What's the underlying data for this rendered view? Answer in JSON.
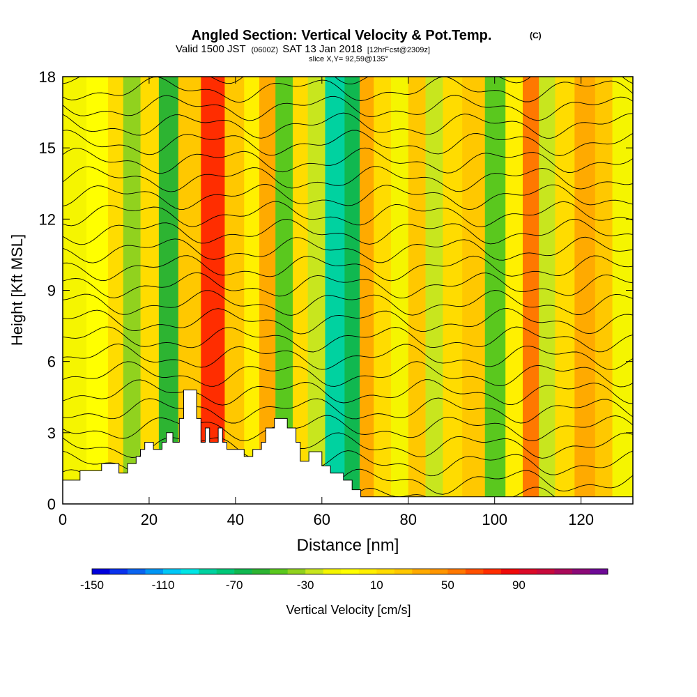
{
  "chart_data": {
    "type": "heatmap",
    "title": "Angled Section: Vertical Velocity & Pot.Temp.",
    "title_units": "(C)",
    "subtitle_main_a": "Valid 1500 JST",
    "subtitle_small_a": "(0600Z)",
    "subtitle_main_b": "SAT 13 Jan 2018",
    "subtitle_small_b": "[12hrFcst@2309z]",
    "subtitle_slice": "slice X,Y= 92,59@135°",
    "xlabel": "Distance [nm]",
    "ylabel": "Height [Kft MSL]",
    "xlim": [
      0,
      132
    ],
    "ylim": [
      0,
      18
    ],
    "x_ticks": [
      "0",
      "20",
      "40",
      "60",
      "80",
      "100",
      "120"
    ],
    "x_tick_values": [
      0,
      20,
      40,
      60,
      80,
      100,
      120
    ],
    "y_ticks": [
      "0",
      "3",
      "6",
      "9",
      "12",
      "15",
      "18"
    ],
    "y_tick_values": [
      0,
      3,
      6,
      9,
      12,
      15,
      18
    ],
    "colorbar_label": "Vertical Velocity [cm/s]",
    "colorbar_ticks": [
      "-150",
      "-110",
      "-70",
      "-30",
      "10",
      "50",
      "90"
    ],
    "colorbar_colors": [
      "#0000dd",
      "#0a32ee",
      "#0a64f0",
      "#0096f5",
      "#00c8f8",
      "#00e6e6",
      "#00d2a0",
      "#00c878",
      "#10b850",
      "#2db432",
      "#5ac81e",
      "#91d21e",
      "#c8e61e",
      "#f5f500",
      "#ffff00",
      "#fff000",
      "#ffdc00",
      "#ffc800",
      "#ffaa00",
      "#ff9600",
      "#ff7800",
      "#ff5000",
      "#ff2d00",
      "#f00a0a",
      "#dc0a28",
      "#c80a3c",
      "#aa0a5a",
      "#8c0a78",
      "#6e0a96"
    ],
    "velocity_bands": [
      {
        "x": 2,
        "v": -12
      },
      {
        "x": 9,
        "v": -5
      },
      {
        "x": 12,
        "v": 14
      },
      {
        "x": 16,
        "v": -40
      },
      {
        "x": 20,
        "v": 12
      },
      {
        "x": 24.5,
        "v": -60
      },
      {
        "x": 29,
        "v": 20
      },
      {
        "x": 35,
        "v": 75
      },
      {
        "x": 40,
        "v": 25
      },
      {
        "x": 44,
        "v": 0
      },
      {
        "x": 47,
        "v": 30
      },
      {
        "x": 51.5,
        "v": -45
      },
      {
        "x": 55,
        "v": 10
      },
      {
        "x": 58.5,
        "v": -30
      },
      {
        "x": 63,
        "v": -90
      },
      {
        "x": 67.5,
        "v": -65
      },
      {
        "x": 70,
        "v": 30
      },
      {
        "x": 74,
        "v": 15
      },
      {
        "x": 78,
        "v": -20
      },
      {
        "x": 82,
        "v": 20
      },
      {
        "x": 86,
        "v": -25
      },
      {
        "x": 90,
        "v": 10
      },
      {
        "x": 95,
        "v": 20
      },
      {
        "x": 100.5,
        "v": -50
      },
      {
        "x": 104.5,
        "v": 5
      },
      {
        "x": 108.5,
        "v": 55
      },
      {
        "x": 112,
        "v": -30
      },
      {
        "x": 116,
        "v": 10
      },
      {
        "x": 121,
        "v": 35
      },
      {
        "x": 125.5,
        "v": 20
      },
      {
        "x": 129,
        "v": -12
      }
    ],
    "terrain": [
      [
        0,
        1.0
      ],
      [
        4,
        1.0
      ],
      [
        4,
        1.4
      ],
      [
        9,
        1.4
      ],
      [
        9,
        1.7
      ],
      [
        13,
        1.7
      ],
      [
        13,
        1.3
      ],
      [
        15,
        1.3
      ],
      [
        15,
        1.7
      ],
      [
        17,
        1.7
      ],
      [
        17,
        2.0
      ],
      [
        18,
        2.0
      ],
      [
        18,
        2.3
      ],
      [
        19,
        2.3
      ],
      [
        19,
        2.6
      ],
      [
        21,
        2.6
      ],
      [
        21,
        2.3
      ],
      [
        23,
        2.3
      ],
      [
        23,
        2.6
      ],
      [
        24,
        2.6
      ],
      [
        24,
        3.0
      ],
      [
        25.5,
        3.0
      ],
      [
        25.5,
        2.6
      ],
      [
        27,
        2.6
      ],
      [
        27,
        3.6
      ],
      [
        28,
        3.6
      ],
      [
        28,
        4.8
      ],
      [
        31,
        4.8
      ],
      [
        31,
        3.6
      ],
      [
        32,
        3.6
      ],
      [
        32,
        2.6
      ],
      [
        33,
        2.6
      ],
      [
        33,
        3.2
      ],
      [
        34,
        3.2
      ],
      [
        34,
        2.6
      ],
      [
        36,
        2.6
      ],
      [
        36,
        3.2
      ],
      [
        37,
        3.2
      ],
      [
        37,
        2.6
      ],
      [
        38,
        2.6
      ],
      [
        38,
        2.3
      ],
      [
        42,
        2.3
      ],
      [
        42,
        2.0
      ],
      [
        44,
        2.0
      ],
      [
        44,
        2.3
      ],
      [
        46,
        2.3
      ],
      [
        46,
        2.6
      ],
      [
        47,
        2.6
      ],
      [
        47,
        3.2
      ],
      [
        49,
        3.2
      ],
      [
        49,
        3.6
      ],
      [
        52,
        3.6
      ],
      [
        52,
        3.2
      ],
      [
        54,
        3.2
      ],
      [
        54,
        2.6
      ],
      [
        55,
        2.6
      ],
      [
        55,
        1.8
      ],
      [
        57,
        1.8
      ],
      [
        57,
        2.2
      ],
      [
        60,
        2.2
      ],
      [
        60,
        1.6
      ],
      [
        62,
        1.6
      ],
      [
        62,
        1.3
      ],
      [
        65,
        1.3
      ],
      [
        65,
        1.0
      ],
      [
        67,
        1.0
      ],
      [
        67,
        0.6
      ],
      [
        69,
        0.6
      ],
      [
        69,
        0.3
      ],
      [
        132,
        0.3
      ],
      [
        132,
        0
      ],
      [
        0,
        0
      ]
    ],
    "isentrope_levels": [
      -28,
      -26,
      -24,
      -22,
      -20,
      -18,
      -16,
      -14,
      -12,
      -10,
      -8,
      -6,
      -4,
      -2,
      0,
      2,
      4,
      6,
      8,
      10,
      12,
      14,
      16,
      18,
      20
    ]
  }
}
